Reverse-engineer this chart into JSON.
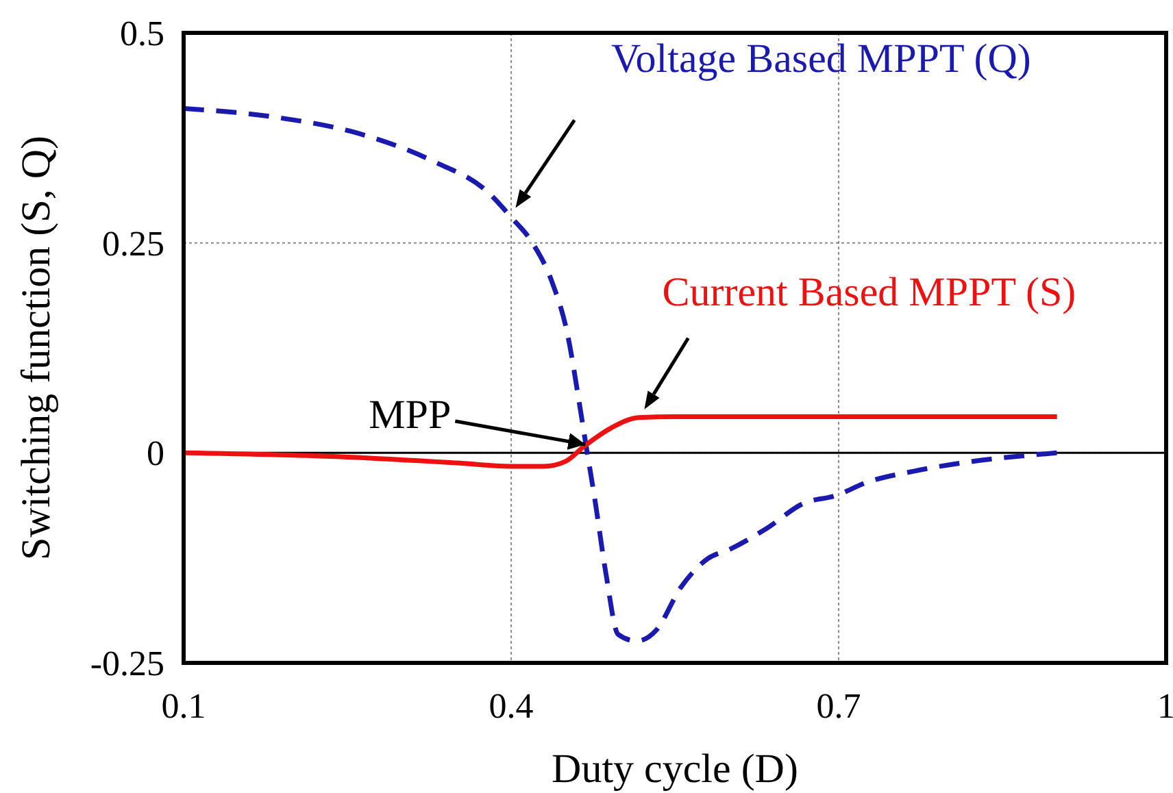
{
  "chart_data": {
    "type": "line",
    "xlabel": "Duty cycle (D)",
    "ylabel": "Switching function (S, Q)",
    "xlim": [
      0.1,
      1
    ],
    "ylim": [
      -0.25,
      0.5
    ],
    "xticks": [
      0.1,
      0.4,
      0.7,
      1
    ],
    "yticks": [
      -0.25,
      0,
      0.25,
      0.5
    ],
    "grid": true,
    "ref_lines": [
      {
        "axis": "y",
        "value": 0,
        "color": "#000000"
      }
    ],
    "annotations": [
      {
        "text": "MPP",
        "x": 0.468,
        "y": 0.01
      }
    ],
    "series": [
      {
        "name": "Voltage Based MPPT (Q)",
        "color": "#1a1aae",
        "line_style": "dashed",
        "x": [
          0.1,
          0.182,
          0.261,
          0.329,
          0.379,
          0.399,
          0.42,
          0.437,
          0.452,
          0.462,
          0.468,
          0.477,
          0.487,
          0.498,
          0.515,
          0.533,
          0.555,
          0.58,
          0.6,
          0.634,
          0.668,
          0.697,
          0.726,
          0.768,
          0.818,
          0.9
        ],
        "values": [
          0.41,
          0.4,
          0.38,
          0.347,
          0.31,
          0.282,
          0.249,
          0.205,
          0.139,
          0.063,
          0.014,
          -0.058,
          -0.145,
          -0.216,
          -0.224,
          -0.211,
          -0.161,
          -0.126,
          -0.115,
          -0.09,
          -0.06,
          -0.051,
          -0.035,
          -0.022,
          -0.011,
          0
        ]
      },
      {
        "name": "Current Based MPPT (S)",
        "color": "#ee1111",
        "line_style": "solid",
        "x": [
          0.1,
          0.25,
          0.35,
          0.4,
          0.43,
          0.45,
          0.467,
          0.492,
          0.517,
          0.55,
          0.9
        ],
        "values": [
          0,
          -0.005,
          -0.012,
          -0.016,
          -0.016,
          -0.01,
          0.008,
          0.03,
          0.042,
          0.043,
          0.043
        ]
      }
    ]
  }
}
